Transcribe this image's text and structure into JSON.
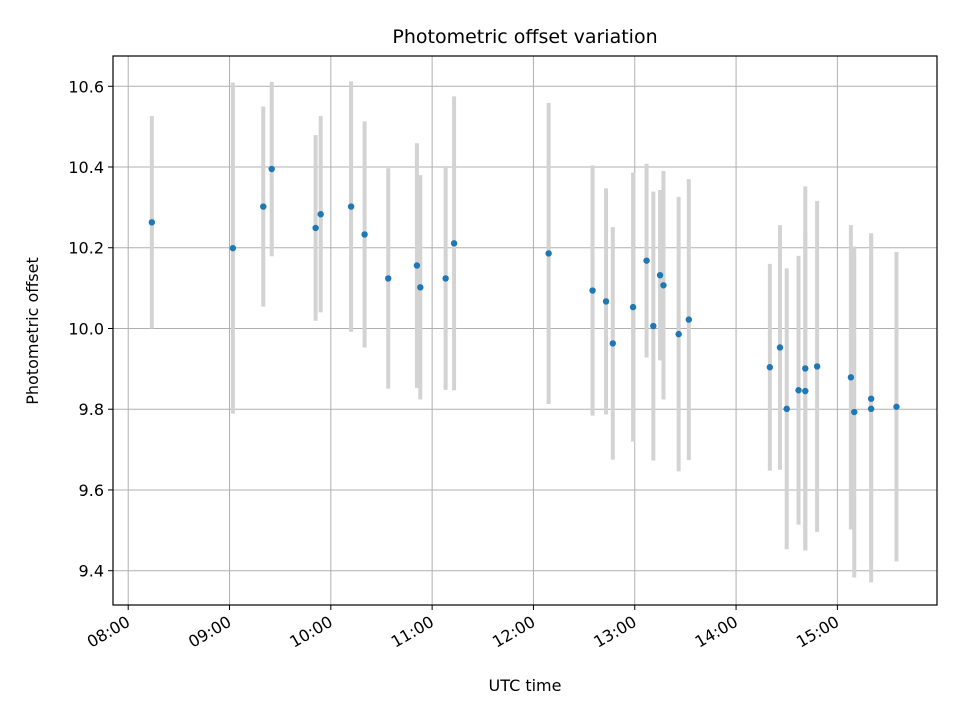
{
  "chart_data": {
    "type": "scatter",
    "title": "Photometric offset variation",
    "xlabel": "UTC time",
    "ylabel": "Photometric offset",
    "xlim": [
      "07:51",
      "15:59"
    ],
    "ylim": [
      9.315,
      10.675
    ],
    "x_ticks": [
      "08:00",
      "09:00",
      "10:00",
      "11:00",
      "12:00",
      "13:00",
      "14:00",
      "15:00"
    ],
    "y_ticks": [
      "9.4",
      "9.6",
      "9.8",
      "10.0",
      "10.2",
      "10.4",
      "10.6"
    ],
    "grid": true,
    "marker_color": "#1f77b4",
    "errorbar_color": "#d3d3d3",
    "points": [
      {
        "t": "08:14",
        "y": 10.263,
        "err": 0.263
      },
      {
        "t": "09:02",
        "y": 10.199,
        "err": 0.41
      },
      {
        "t": "09:20",
        "y": 10.302,
        "err": 0.248
      },
      {
        "t": "09:25",
        "y": 10.395,
        "err": 0.216
      },
      {
        "t": "09:51",
        "y": 10.249,
        "err": 0.23
      },
      {
        "t": "09:54",
        "y": 10.283,
        "err": 0.243
      },
      {
        "t": "10:12",
        "y": 10.302,
        "err": 0.31
      },
      {
        "t": "10:20",
        "y": 10.233,
        "err": 0.28
      },
      {
        "t": "10:34",
        "y": 10.124,
        "err": 0.273
      },
      {
        "t": "10:51",
        "y": 10.156,
        "err": 0.303
      },
      {
        "t": "10:53",
        "y": 10.102,
        "err": 0.278
      },
      {
        "t": "11:08",
        "y": 10.124,
        "err": 0.276
      },
      {
        "t": "11:13",
        "y": 10.211,
        "err": 0.364
      },
      {
        "t": "12:09",
        "y": 10.186,
        "err": 0.373
      },
      {
        "t": "12:35",
        "y": 10.094,
        "err": 0.31
      },
      {
        "t": "12:43",
        "y": 10.067,
        "err": 0.28
      },
      {
        "t": "12:47",
        "y": 9.963,
        "err": 0.288
      },
      {
        "t": "12:59",
        "y": 10.053,
        "err": 0.333
      },
      {
        "t": "13:07",
        "y": 10.168,
        "err": 0.24
      },
      {
        "t": "13:11",
        "y": 10.006,
        "err": 0.333
      },
      {
        "t": "13:15",
        "y": 10.132,
        "err": 0.211
      },
      {
        "t": "13:17",
        "y": 10.107,
        "err": 0.283
      },
      {
        "t": "13:26",
        "y": 9.986,
        "err": 0.34
      },
      {
        "t": "13:32",
        "y": 10.022,
        "err": 0.348
      },
      {
        "t": "14:20",
        "y": 9.904,
        "err": 0.256
      },
      {
        "t": "14:26",
        "y": 9.953,
        "err": 0.303
      },
      {
        "t": "14:30",
        "y": 9.801,
        "err": 0.348
      },
      {
        "t": "14:37",
        "y": 9.847,
        "err": 0.333
      },
      {
        "t": "14:41",
        "y": 9.845,
        "err": 0.395
      },
      {
        "t": "14:41",
        "y": 9.901,
        "err": 0.451
      },
      {
        "t": "14:48",
        "y": 9.906,
        "err": 0.41
      },
      {
        "t": "15:08",
        "y": 9.879,
        "err": 0.377
      },
      {
        "t": "15:10",
        "y": 9.793,
        "err": 0.41
      },
      {
        "t": "15:20",
        "y": 9.826,
        "err": 0.41
      },
      {
        "t": "15:20",
        "y": 9.801,
        "err": 0.43
      },
      {
        "t": "15:35",
        "y": 9.806,
        "err": 0.383
      }
    ]
  }
}
